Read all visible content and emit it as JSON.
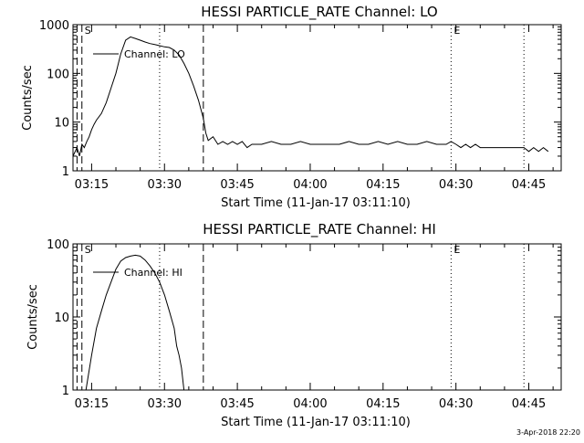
{
  "chart_data": [
    {
      "type": "line",
      "title": "HESSI PARTICLE_RATE Channel: LO",
      "xlabel": "Start Time (11-Jan-17 03:11:10)",
      "ylabel": "Counts/sec",
      "yscale": "log",
      "ylim": [
        1,
        1000
      ],
      "xlim": [
        "03:11:10",
        "04:51:40"
      ],
      "x_ticks": [
        "03:15",
        "03:30",
        "03:45",
        "04:00",
        "04:15",
        "04:30",
        "04:45"
      ],
      "y_ticks": [
        "1",
        "10",
        "100",
        "1000"
      ],
      "legend": "Channel: LO",
      "legend_position": "top-left",
      "markers": [
        {
          "label": "S",
          "x": "03:13:00",
          "style": "dashed"
        },
        {
          "label": "E",
          "x": "04:29:00",
          "style": "dotted"
        }
      ],
      "vlines": [
        {
          "x": "03:12:00",
          "style": "dashed"
        },
        {
          "x": "03:29:00",
          "style": "dotted"
        },
        {
          "x": "03:38:00",
          "style": "dashed"
        },
        {
          "x": "04:44:00",
          "style": "dotted"
        }
      ],
      "series": [
        {
          "name": "Channel: LO",
          "x": [
            "03:11:10",
            "03:12:00",
            "03:12:30",
            "03:13:00",
            "03:13:30",
            "03:14:00",
            "03:14:30",
            "03:15:00",
            "03:15:30",
            "03:16:00",
            "03:17:00",
            "03:18:00",
            "03:19:00",
            "03:20:00",
            "03:21:00",
            "03:22:00",
            "03:23:00",
            "03:24:00",
            "03:25:00",
            "03:26:00",
            "03:27:00",
            "03:28:00",
            "03:29:00",
            "03:30:00",
            "03:31:00",
            "03:32:00",
            "03:33:00",
            "03:34:00",
            "03:35:00",
            "03:36:00",
            "03:37:00",
            "03:38:00",
            "03:38:30",
            "03:39:00",
            "03:40:00",
            "03:41:00",
            "03:42:00",
            "03:43:00",
            "03:44:00",
            "03:45:00",
            "03:46:00",
            "03:47:00",
            "03:48:00",
            "03:50:00",
            "03:52:00",
            "03:54:00",
            "03:56:00",
            "03:58:00",
            "04:00:00",
            "04:02:00",
            "04:04:00",
            "04:06:00",
            "04:08:00",
            "04:10:00",
            "04:12:00",
            "04:14:00",
            "04:16:00",
            "04:18:00",
            "04:20:00",
            "04:22:00",
            "04:24:00",
            "04:26:00",
            "04:28:00",
            "04:29:00",
            "04:30:00",
            "04:31:00",
            "04:32:00",
            "04:33:00",
            "04:34:00",
            "04:35:00",
            "04:36:00",
            "04:38:00",
            "04:40:00",
            "04:42:00",
            "04:43:00",
            "04:44:00",
            "04:45:00",
            "04:46:00",
            "04:47:00",
            "04:48:00",
            "04:49:00"
          ],
          "y": [
            2,
            3,
            2,
            3.5,
            3,
            4,
            5,
            7,
            9,
            11,
            15,
            25,
            50,
            100,
            250,
            480,
            560,
            520,
            480,
            440,
            410,
            390,
            370,
            350,
            340,
            300,
            240,
            160,
            100,
            55,
            28,
            12,
            6,
            4.2,
            5,
            3.5,
            4,
            3.5,
            4,
            3.5,
            4,
            3,
            3.5,
            3.5,
            4,
            3.5,
            3.5,
            4,
            3.5,
            3.5,
            3.5,
            3.5,
            4,
            3.5,
            3.5,
            4,
            3.5,
            4,
            3.5,
            3.5,
            4,
            3.5,
            3.5,
            4,
            3.5,
            3,
            3.5,
            3,
            3.5,
            3,
            3,
            3,
            3,
            3,
            3,
            3,
            2.5,
            3,
            2.5,
            3,
            2.5
          ]
        }
      ]
    },
    {
      "type": "line",
      "title": "HESSI PARTICLE_RATE Channel: HI",
      "xlabel": "Start Time (11-Jan-17 03:11:10)",
      "ylabel": "Counts/sec",
      "yscale": "log",
      "ylim": [
        1,
        100
      ],
      "xlim": [
        "03:11:10",
        "04:51:40"
      ],
      "x_ticks": [
        "03:15",
        "03:30",
        "03:45",
        "04:00",
        "04:15",
        "04:30",
        "04:45"
      ],
      "y_ticks": [
        "1",
        "10",
        "100"
      ],
      "legend": "Channel: HI",
      "legend_position": "top-left",
      "markers": [
        {
          "label": "S",
          "x": "03:13:00",
          "style": "dashed"
        },
        {
          "label": "E",
          "x": "04:29:00",
          "style": "dotted"
        }
      ],
      "vlines": [
        {
          "x": "03:12:00",
          "style": "dashed"
        },
        {
          "x": "03:29:00",
          "style": "dotted"
        },
        {
          "x": "03:38:00",
          "style": "dashed"
        },
        {
          "x": "04:44:00",
          "style": "dotted"
        }
      ],
      "series": [
        {
          "name": "Channel: HI",
          "x": [
            "03:13:50",
            "03:15:00",
            "03:16:00",
            "03:17:00",
            "03:18:00",
            "03:19:00",
            "03:20:00",
            "03:21:00",
            "03:22:00",
            "03:23:00",
            "03:24:00",
            "03:25:00",
            "03:26:00",
            "03:27:00",
            "03:28:00",
            "03:29:00",
            "03:30:00",
            "03:31:00",
            "03:32:00",
            "03:32:30",
            "03:33:00",
            "03:33:30",
            "03:34:00"
          ],
          "y": [
            1,
            3,
            7,
            12,
            20,
            30,
            45,
            58,
            65,
            68,
            70,
            68,
            60,
            50,
            40,
            30,
            20,
            12,
            7,
            4,
            3,
            2,
            1
          ]
        }
      ]
    }
  ],
  "footer": {
    "timestamp": "3-Apr-2018 22:20"
  }
}
